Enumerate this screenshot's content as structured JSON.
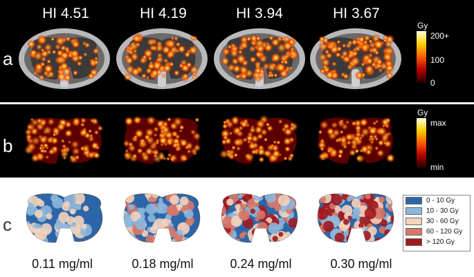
{
  "row_labels": {
    "a": "a",
    "b": "b",
    "c": "c"
  },
  "hi_labels": [
    "HI 4.51",
    "HI 4.19",
    "HI 3.94",
    "HI 3.67"
  ],
  "colorbar_a": {
    "unit": "Gy",
    "ticks": [
      "200+",
      "100",
      "0"
    ]
  },
  "colorbar_b": {
    "unit": "Gy",
    "ticks": [
      "max",
      "min"
    ]
  },
  "legend": [
    {
      "label": "0 - 10 Gy",
      "color": "#2d66a8"
    },
    {
      "label": "10 - 30 Gy",
      "color": "#8db7dc"
    },
    {
      "label": "30 - 60 Gy",
      "color": "#f2d3bd"
    },
    {
      "label": "60 - 120 Gy",
      "color": "#d6776a"
    },
    {
      "label": "> 120 Gy",
      "color": "#a11a1f"
    }
  ],
  "concentrations": [
    "0.11 mg/ml",
    "0.18 mg/ml",
    "0.24 mg/ml",
    "0.30 mg/ml"
  ]
}
